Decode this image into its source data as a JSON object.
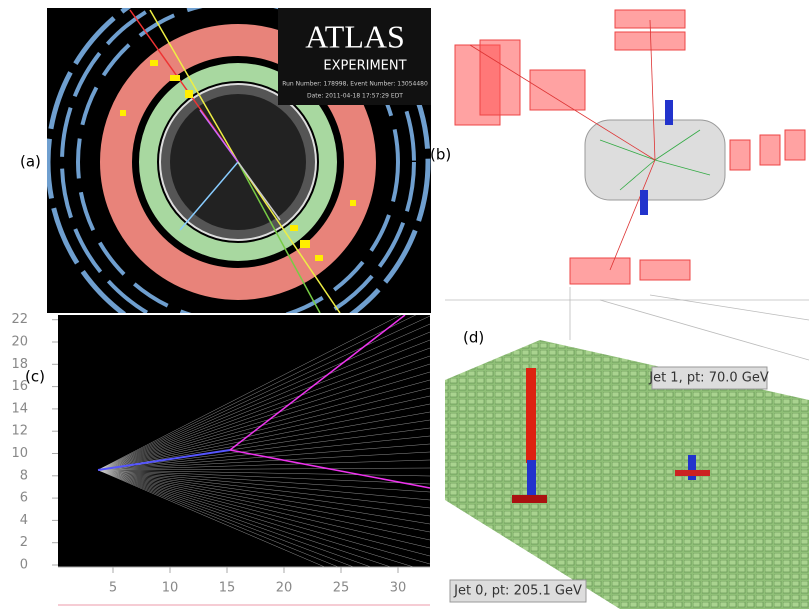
{
  "panels": [
    {
      "label": "(a)",
      "logo": "ATLAS",
      "logo_sub": "EXPERIMENT",
      "run_info": "Run Number: 178998, Event Number: 13054480",
      "date": "Date: 2011-04-18 17:57:29 EDT"
    },
    {
      "label": "(b)"
    },
    {
      "label": "(c)",
      "yticks": [
        0,
        2,
        4,
        6,
        8,
        10,
        12,
        14,
        16,
        18,
        20,
        22
      ],
      "xticks": [
        5,
        10,
        15,
        20,
        25,
        30
      ]
    },
    {
      "label": "(d)",
      "annotations": [
        "Jet 1, pt: 70.0 GeV",
        "Jet 0, pt: 205.1 GeV"
      ]
    }
  ]
}
